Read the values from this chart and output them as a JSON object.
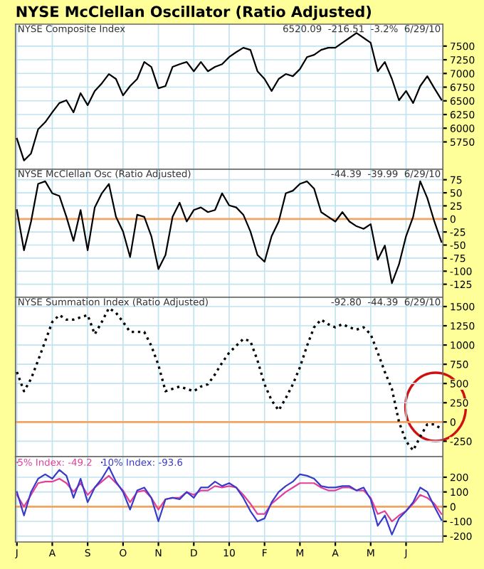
{
  "chart_data": [
    {
      "type": "line",
      "title": "NYSE McClellan Oscillator (Ratio Adjusted)",
      "subtitle": "NYSE Composite Index",
      "annotations": [
        "6520.09  -216.51  -3.2%  6/29/10"
      ],
      "categories": [
        null,
        null,
        null,
        null,
        null,
        null,
        null,
        null,
        null,
        null,
        null,
        null,
        null,
        null,
        null,
        null,
        null,
        null,
        null,
        null,
        null,
        null,
        null,
        null,
        null,
        null,
        null,
        null,
        null,
        null,
        null,
        null,
        null,
        null,
        null,
        null,
        null,
        null,
        null,
        null,
        null,
        null,
        null,
        null,
        null,
        null,
        null,
        null,
        null,
        null,
        null,
        null,
        null,
        null,
        null,
        null,
        null,
        null,
        null,
        null,
        null
      ],
      "series": [
        {
          "color": "#000000",
          "values": [
            5810,
            5410,
            5540,
            5980,
            6110,
            6290,
            6460,
            6510,
            6290,
            6640,
            6420,
            6680,
            6820,
            6990,
            6900,
            6600,
            6770,
            6900,
            7210,
            7120,
            6730,
            6770,
            7120,
            7170,
            7210,
            7040,
            7210,
            7040,
            7120,
            7170,
            7300,
            7390,
            7470,
            7430,
            7040,
            6900,
            6680,
            6900,
            6990,
            6950,
            7080,
            7300,
            7340,
            7430,
            7470,
            7470,
            7560,
            7650,
            7740,
            7650,
            7560,
            7040,
            7210,
            6900,
            6510,
            6680,
            6460,
            6770,
            6950,
            6730,
            6520
          ]
        }
      ],
      "ylim": [
        5250,
        7900
      ],
      "yticks": [
        5750,
        6000,
        6250,
        6500,
        6750,
        7000,
        7250,
        7500
      ],
      "grid": true,
      "tick_labels": "y",
      "line_style": "solid"
    },
    {
      "type": "line",
      "subtitle": "NYSE McClellan Osc (Ratio Adjusted)",
      "annotations": [
        "-44.39  -39.99  6/29/10"
      ],
      "categories": [
        null,
        null,
        null,
        null,
        null,
        null,
        null,
        null,
        null,
        null,
        null,
        null,
        null,
        null,
        null,
        null,
        null,
        null,
        null,
        null,
        null,
        null,
        null,
        null,
        null,
        null,
        null,
        null,
        null,
        null,
        null,
        null,
        null,
        null,
        null,
        null,
        null,
        null,
        null,
        null,
        null,
        null,
        null,
        null,
        null,
        null,
        null,
        null,
        null,
        null,
        null,
        null,
        null,
        null,
        null,
        null,
        null,
        null,
        null,
        null,
        null
      ],
      "series": [
        {
          "color": "#000000",
          "values": [
            17,
            -60,
            -5,
            67,
            72,
            49,
            44,
            4,
            -42,
            17,
            -60,
            22,
            49,
            67,
            4,
            -24,
            -73,
            8,
            4,
            -33,
            -96,
            -69,
            4,
            31,
            -5,
            17,
            22,
            13,
            17,
            49,
            26,
            22,
            8,
            -24,
            -69,
            -82,
            -33,
            -5,
            49,
            54,
            67,
            72,
            58,
            13,
            4,
            -5,
            13,
            -5,
            -14,
            -19,
            -10,
            -78,
            -51,
            -123,
            -87,
            -33,
            4,
            72,
            40,
            -5,
            -44
          ]
        }
      ],
      "ylim": [
        -150,
        95
      ],
      "yticks": [
        -125,
        -100,
        -75,
        -50,
        -25,
        0,
        25,
        50,
        75
      ],
      "ref_lines": [
        {
          "axis": "y",
          "value": 0,
          "color": "#f4a460"
        }
      ],
      "grid": true,
      "tick_labels": "y",
      "line_style": "solid"
    },
    {
      "type": "line",
      "subtitle": "NYSE Summation Index (Ratio Adjusted)",
      "annotations": [
        "-92.80  -44.39  6/29/10"
      ],
      "categories": [
        null,
        null,
        null,
        null,
        null,
        null,
        null,
        null,
        null,
        null,
        null,
        null,
        null,
        null,
        null,
        null,
        null,
        null,
        null,
        null,
        null,
        null,
        null,
        null,
        null,
        null,
        null,
        null,
        null,
        null,
        null,
        null,
        null,
        null,
        null,
        null,
        null,
        null,
        null,
        null,
        null,
        null,
        null,
        null,
        null,
        null,
        null,
        null,
        null,
        null,
        null,
        null,
        null,
        null,
        null,
        null,
        null,
        null,
        null,
        null,
        null
      ],
      "series": [
        {
          "color": "#000000",
          "values": [
            650,
            400,
            560,
            800,
            1050,
            1300,
            1390,
            1330,
            1330,
            1360,
            1390,
            1140,
            1300,
            1480,
            1420,
            1300,
            1170,
            1170,
            1170,
            990,
            740,
            400,
            430,
            460,
            430,
            400,
            460,
            490,
            620,
            770,
            900,
            990,
            1080,
            1050,
            800,
            490,
            280,
            150,
            310,
            490,
            710,
            990,
            1230,
            1330,
            1270,
            1230,
            1270,
            1230,
            1200,
            1230,
            1140,
            900,
            650,
            430,
            0,
            -250,
            -370,
            -190,
            -30,
            -30,
            -90
          ]
        }
      ],
      "ylim": [
        -450,
        1620
      ],
      "yticks": [
        -250,
        0,
        250,
        500,
        750,
        1000,
        1250,
        1500
      ],
      "ref_lines": [
        {
          "axis": "y",
          "value": 0,
          "color": "#f4a460"
        }
      ],
      "grid": true,
      "tick_labels": "y",
      "line_style": "dotted"
    },
    {
      "type": "line",
      "categories": [
        "J",
        null,
        null,
        null,
        null,
        "A",
        null,
        null,
        null,
        null,
        "S",
        null,
        null,
        null,
        null,
        "O",
        null,
        null,
        null,
        null,
        "N",
        null,
        null,
        null,
        null,
        "D",
        null,
        null,
        null,
        null,
        "10",
        null,
        null,
        null,
        null,
        "F",
        null,
        null,
        null,
        null,
        "M",
        null,
        null,
        null,
        null,
        "A",
        null,
        null,
        null,
        null,
        "M",
        null,
        null,
        null,
        null,
        "J",
        null,
        null,
        null,
        null,
        null
      ],
      "series": [
        {
          "name": "5% Index: -49.2",
          "color": "#e0409a",
          "values": [
            80,
            0,
            80,
            160,
            170,
            170,
            190,
            160,
            100,
            160,
            80,
            130,
            170,
            210,
            160,
            110,
            30,
            100,
            110,
            60,
            -20,
            50,
            60,
            60,
            100,
            80,
            110,
            110,
            140,
            130,
            140,
            130,
            80,
            20,
            -50,
            -50,
            20,
            60,
            100,
            130,
            160,
            160,
            160,
            130,
            110,
            110,
            130,
            130,
            110,
            110,
            60,
            -50,
            -30,
            -100,
            -60,
            -30,
            20,
            80,
            60,
            20,
            -50
          ]
        },
        {
          "name": "10% Index: -93.6",
          "color": "#3a3ac8",
          "values": [
            100,
            -60,
            100,
            190,
            220,
            190,
            250,
            210,
            60,
            190,
            30,
            130,
            190,
            270,
            170,
            100,
            -20,
            110,
            130,
            60,
            -100,
            50,
            60,
            50,
            100,
            60,
            130,
            130,
            170,
            140,
            160,
            130,
            60,
            -30,
            -100,
            -80,
            30,
            100,
            140,
            170,
            220,
            210,
            190,
            140,
            130,
            130,
            140,
            140,
            110,
            130,
            50,
            -130,
            -60,
            -190,
            -80,
            -30,
            30,
            130,
            100,
            0,
            -90
          ]
        }
      ],
      "ylim": [
        -240,
        340
      ],
      "yticks": [
        -200,
        -100,
        0,
        100,
        200
      ],
      "ref_lines": [
        {
          "axis": "y",
          "value": 0,
          "color": "#f4a460"
        }
      ],
      "grid": true,
      "legend": "top left",
      "line_style": "solid"
    }
  ]
}
